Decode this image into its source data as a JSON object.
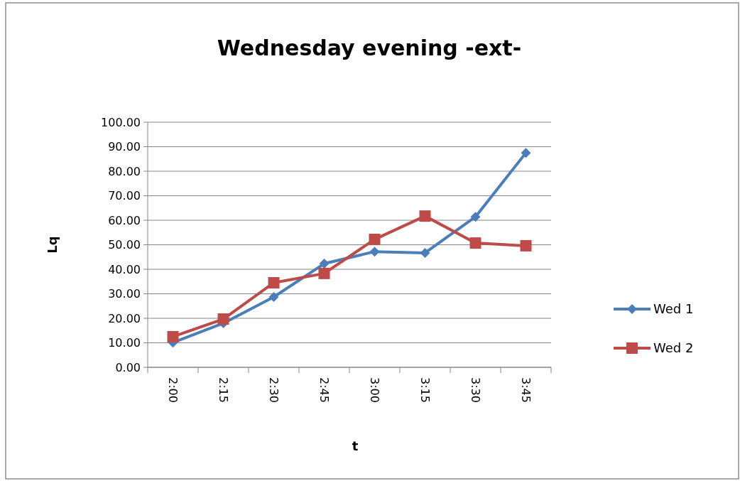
{
  "chart_data": {
    "type": "line",
    "title": "Wednesday  evening -ext-",
    "xlabel": "t",
    "ylabel": "Lq",
    "categories": [
      "2:00",
      "2:15",
      "2:30",
      "2:45",
      "3:00",
      "3:15",
      "3:30",
      "3:45"
    ],
    "series": [
      {
        "name": "Wed 1",
        "color": "#4a7ebb",
        "marker": "diamond",
        "values": [
          10.1,
          18,
          28.7,
          42.3,
          47.2,
          46.7,
          61.4,
          87.5
        ]
      },
      {
        "name": "Wed 2",
        "color": "#be4b48",
        "marker": "square",
        "values": [
          12.5,
          19.7,
          34.5,
          38.3,
          52.2,
          61.7,
          50.7,
          49.6
        ]
      }
    ],
    "ylim": [
      0,
      100
    ],
    "yticks": [
      {
        "value": 0,
        "label": "0.00"
      },
      {
        "value": 10,
        "label": "10.00"
      },
      {
        "value": 20,
        "label": "20.00"
      },
      {
        "value": 30,
        "label": "30.00"
      },
      {
        "value": 40,
        "label": "40.00"
      },
      {
        "value": 50,
        "label": "50.00"
      },
      {
        "value": 60,
        "label": "60.00"
      },
      {
        "value": 70,
        "label": "70.00"
      },
      {
        "value": 80,
        "label": "80.00"
      },
      {
        "value": 90,
        "label": "90.00"
      },
      {
        "value": 100,
        "label": "100.00"
      }
    ],
    "grid": "y",
    "legend": "right"
  }
}
